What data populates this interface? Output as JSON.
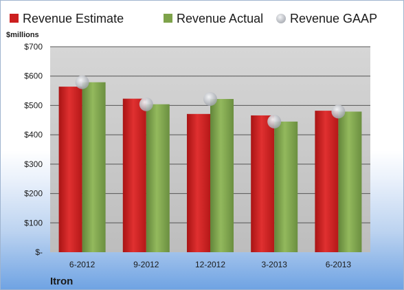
{
  "chart_data": {
    "type": "bar",
    "categories": [
      "6-2012",
      "9-2012",
      "12-2012",
      "3-2013",
      "6-2013"
    ],
    "series": [
      {
        "name": "Revenue Estimate",
        "type": "bar",
        "color": "#cc1f1f",
        "values": [
          564,
          523,
          471,
          466,
          482
        ]
      },
      {
        "name": "Revenue Actual",
        "type": "bar",
        "color": "#7ea34a",
        "values": [
          579,
          504,
          522,
          445,
          479
        ]
      },
      {
        "name": "Revenue GAAP",
        "type": "marker",
        "color": "#b9bcc2",
        "values": [
          579,
          504,
          522,
          445,
          479
        ]
      }
    ],
    "ylabel": "$millions",
    "ylim": [
      0,
      700
    ],
    "yticks": [
      0,
      100,
      200,
      300,
      400,
      500,
      600,
      700
    ],
    "ytick_labels": [
      "$-",
      "$100",
      "$200",
      "$300",
      "$400",
      "$500",
      "$600",
      "$700"
    ],
    "grid": true,
    "legend_position": "top",
    "company": "Itron"
  }
}
